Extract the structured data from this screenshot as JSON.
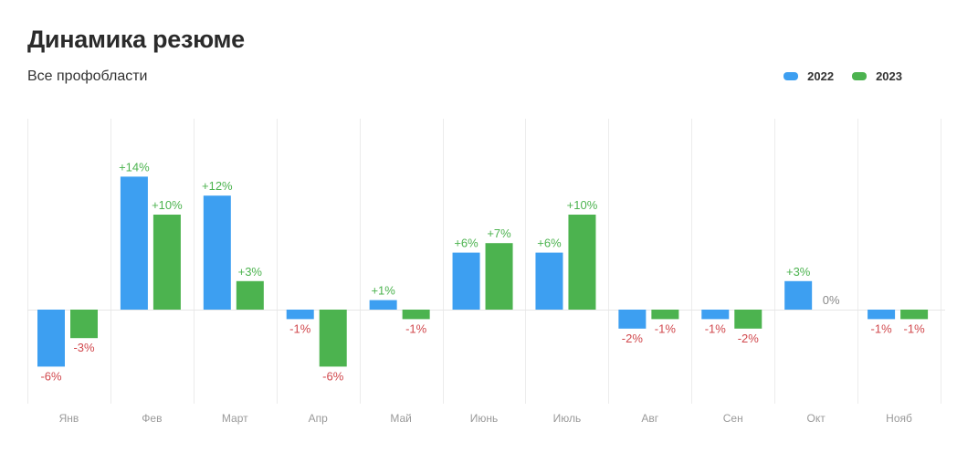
{
  "header": {
    "title": "Динамика резюме",
    "subtitle": "Все профобласти"
  },
  "colors": {
    "series_2022": "#3d9ff1",
    "series_2023": "#4cb34f",
    "positive_label": "#4cb34f",
    "negative_label": "#d1484d",
    "zero_label": "#8a8a8a"
  },
  "chart_data": {
    "type": "bar",
    "title": "Динамика резюме",
    "subtitle": "Все профобласти",
    "xlabel": "",
    "ylabel": "",
    "unit": "%",
    "legend_position": "top-right",
    "grid": "vertical",
    "ylim": [
      -10,
      20
    ],
    "categories": [
      "Янв",
      "Фев",
      "Март",
      "Апр",
      "Май",
      "Июнь",
      "Июль",
      "Авг",
      "Сен",
      "Окт",
      "Нояб"
    ],
    "series": [
      {
        "name": "2022",
        "values": [
          -6,
          14,
          12,
          -1,
          1,
          6,
          6,
          -2,
          -1,
          3,
          -1
        ],
        "labels": [
          "-6%",
          "+14%",
          "+12%",
          "-1%",
          "+1%",
          "+6%",
          "+6%",
          "-2%",
          "-1%",
          "+3%",
          "-1%"
        ]
      },
      {
        "name": "2023",
        "values": [
          -3,
          10,
          3,
          -6,
          -1,
          7,
          10,
          -1,
          -2,
          0,
          -1
        ],
        "labels": [
          "-3%",
          "+10%",
          "+3%",
          "-6%",
          "-1%",
          "+7%",
          "+10%",
          "-1%",
          "-2%",
          "0%",
          "-1%"
        ]
      }
    ]
  }
}
